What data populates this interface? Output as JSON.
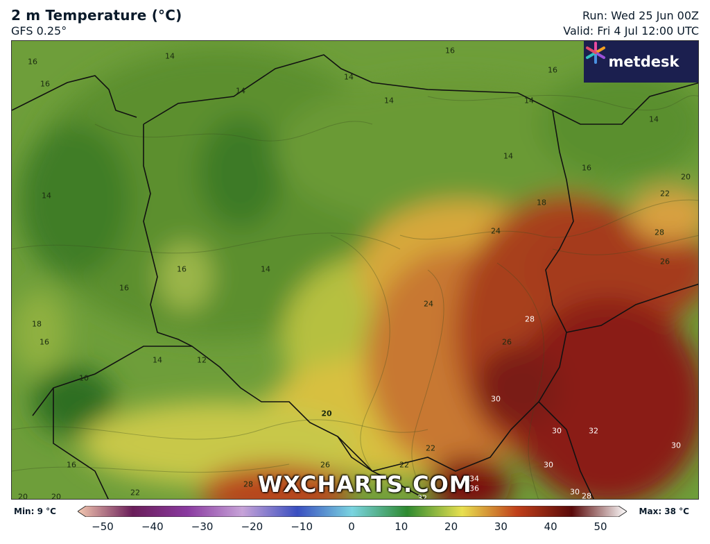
{
  "header": {
    "title": "2 m Temperature (°C)",
    "model": "GFS 0.25°",
    "run": "Run: Wed 25 Jun 00Z",
    "valid": "Valid: Fri 4 Jul 12:00 UTC"
  },
  "brand": {
    "logo_text": "metdesk",
    "watermark": "WXCHARTS.COM"
  },
  "contour_labels": [
    "14",
    "16",
    "16",
    "14",
    "14",
    "14",
    "16",
    "14",
    "14",
    "16",
    "14",
    "16",
    "18",
    "20",
    "22",
    "28",
    "26",
    "24",
    "24",
    "14",
    "16",
    "16",
    "18",
    "16",
    "14",
    "12",
    "10",
    "26",
    "28",
    "30",
    "30",
    "32",
    "30",
    "30",
    "30",
    "20",
    "22",
    "26",
    "22",
    "28",
    "34",
    "36",
    "32",
    "20",
    "20",
    "16",
    "22",
    "28",
    "14"
  ],
  "scale": {
    "min_label": "Min: 9 °C",
    "max_label": "Max: 38 °C",
    "ticks": [
      "−50",
      "−40",
      "−30",
      "−20",
      "−10",
      "0",
      "10",
      "20",
      "30",
      "40",
      "50"
    ],
    "colors": {
      "c_m50": "#f4c9b0",
      "c_m40": "#6a1e5a",
      "c_m30": "#8a3aa0",
      "c_m20": "#c7a3d8",
      "c_m10": "#3a4fc0",
      "c_0": "#7ad4e0",
      "c_10": "#2e8a30",
      "c_20": "#e8e050",
      "c_30": "#c0401a",
      "c_40": "#5a0a0a",
      "c_50": "#ffffff"
    }
  }
}
